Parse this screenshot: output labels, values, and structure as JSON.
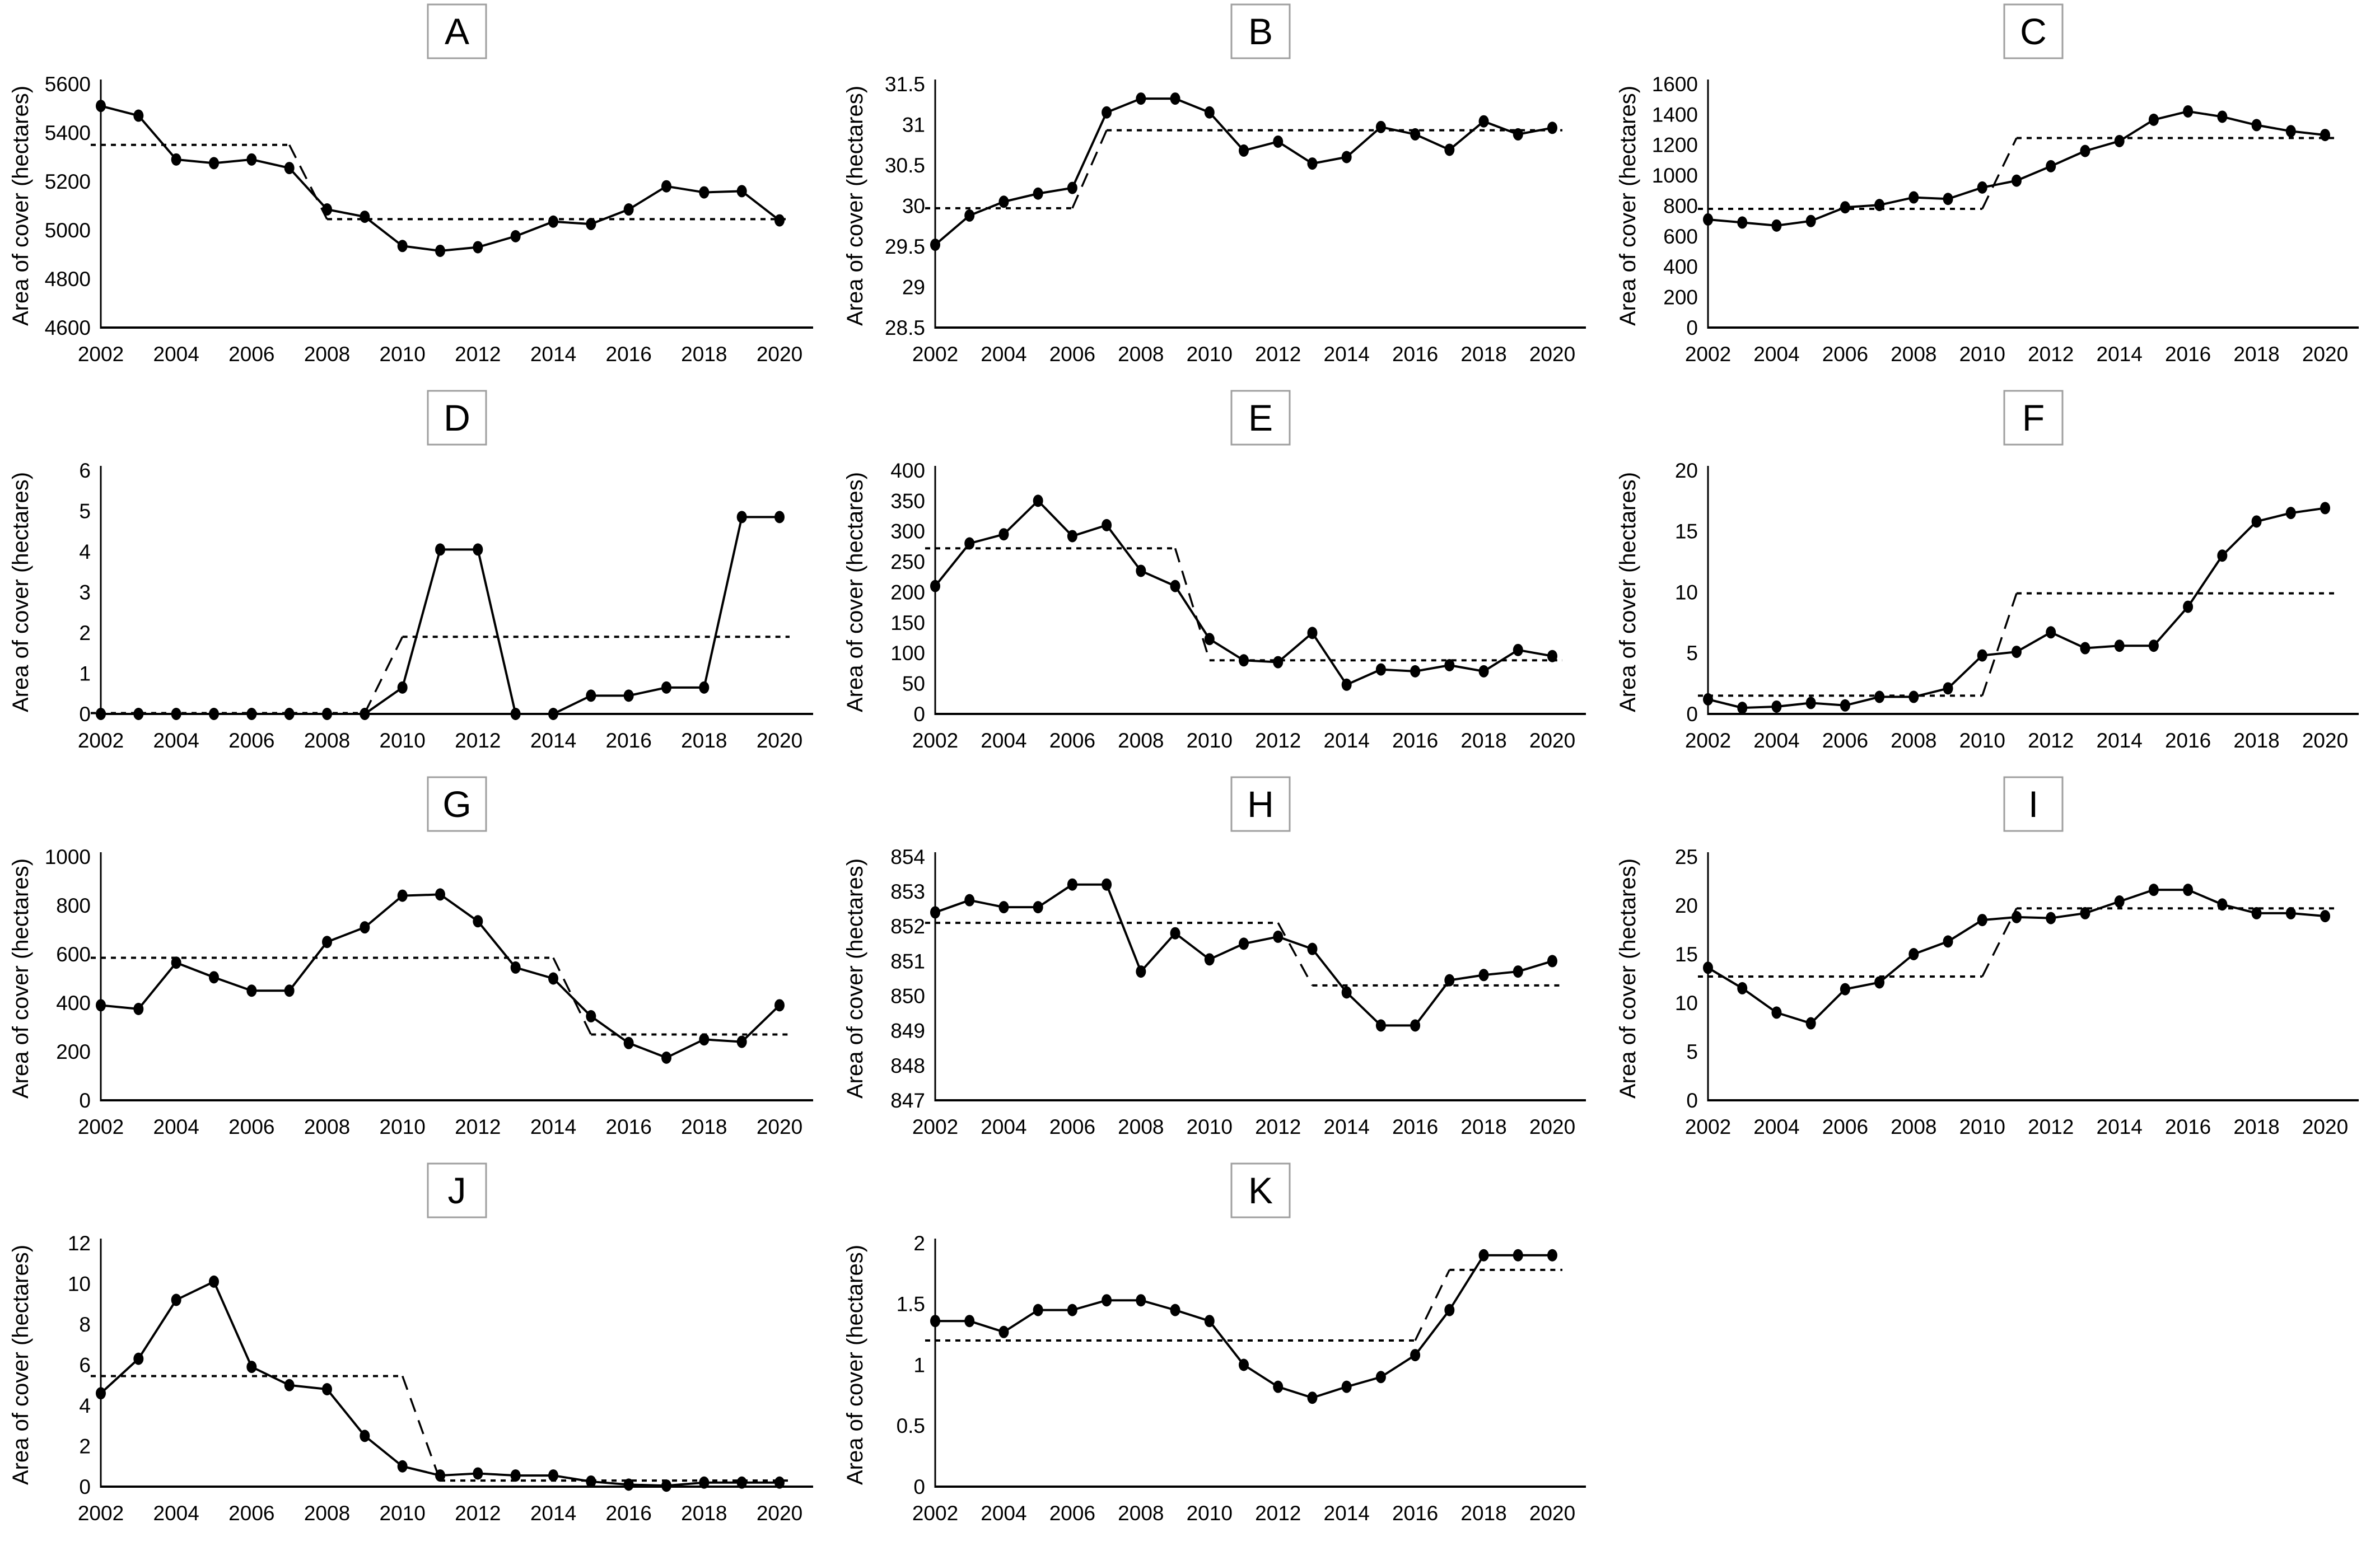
{
  "figure": {
    "ylabel": "Area of cover (hectares)",
    "years": [
      2002,
      2003,
      2004,
      2005,
      2006,
      2007,
      2008,
      2009,
      2010,
      2011,
      2012,
      2013,
      2014,
      2015,
      2016,
      2017,
      2018,
      2019,
      2020
    ],
    "x_tick_labels": [
      "2002",
      "2004",
      "2006",
      "2008",
      "2010",
      "2012",
      "2014",
      "2016",
      "2018",
      "2020"
    ],
    "series_styles": [
      {
        "name": "annual area of cover",
        "style": "solid line with filled circle markers",
        "color": "#000000"
      },
      {
        "name": "regime mean",
        "style": "dashed step line",
        "color": "#000000"
      }
    ],
    "grid_layout": "3 columns x 4 rows, last row has panels J and K only",
    "background_color": "#ffffff",
    "panel_box_border_color": "#9f9f9f"
  },
  "chart_data": [
    {
      "id": "A",
      "panel_label": "A",
      "type": "line",
      "ylabel": "Area of cover (hectares)",
      "ylim": [
        4600,
        5600
      ],
      "ytick_step": 200,
      "values": [
        5510,
        5470,
        5290,
        5275,
        5290,
        5255,
        5085,
        5055,
        4935,
        4915,
        4930,
        4975,
        5035,
        5025,
        5085,
        5180,
        5155,
        5160,
        5040
      ],
      "regime_means": [
        {
          "from": 2002,
          "to": 2007,
          "mean": 5350
        },
        {
          "from": 2008,
          "to": 2020,
          "mean": 5045
        }
      ]
    },
    {
      "id": "B",
      "panel_label": "B",
      "type": "line",
      "ylabel": "Area of cover (hectares)",
      "ylim": [
        28.5,
        31.5
      ],
      "ytick_step": 0.5,
      "values": [
        29.52,
        29.88,
        30.05,
        30.15,
        30.22,
        31.15,
        31.32,
        31.32,
        31.15,
        30.68,
        30.79,
        30.52,
        30.6,
        30.97,
        30.88,
        30.69,
        31.04,
        30.88,
        30.96
      ],
      "regime_means": [
        {
          "from": 2002,
          "to": 2006,
          "mean": 29.97
        },
        {
          "from": 2007,
          "to": 2020,
          "mean": 30.93
        }
      ]
    },
    {
      "id": "C",
      "panel_label": "C",
      "type": "line",
      "ylabel": "Area of cover (hectares)",
      "ylim": [
        0,
        1600
      ],
      "ytick_step": 200,
      "values": [
        710,
        690,
        670,
        700,
        790,
        805,
        855,
        845,
        920,
        965,
        1060,
        1160,
        1225,
        1365,
        1420,
        1385,
        1330,
        1290,
        1265
      ],
      "regime_means": [
        {
          "from": 2002,
          "to": 2010,
          "mean": 780
        },
        {
          "from": 2011,
          "to": 2020,
          "mean": 1245
        }
      ]
    },
    {
      "id": "D",
      "panel_label": "D",
      "type": "line",
      "ylabel": "Area of cover (hectares)",
      "ylim": [
        0,
        6
      ],
      "ytick_step": 1,
      "values": [
        0,
        0,
        0,
        0,
        0,
        0,
        0,
        0,
        0.65,
        4.05,
        4.05,
        0,
        0,
        0.45,
        0.45,
        0.65,
        0.65,
        4.85,
        4.85
      ],
      "regime_means": [
        {
          "from": 2002,
          "to": 2009,
          "mean": 0.02
        },
        {
          "from": 2010,
          "to": 2020,
          "mean": 1.9
        }
      ]
    },
    {
      "id": "E",
      "panel_label": "E",
      "type": "line",
      "ylabel": "Area of cover (hectares)",
      "ylim": [
        0,
        400
      ],
      "ytick_step": 50,
      "values": [
        210,
        280,
        295,
        350,
        292,
        310,
        235,
        210,
        123,
        88,
        85,
        133,
        48,
        73,
        70,
        80,
        70,
        105,
        95
      ],
      "regime_means": [
        {
          "from": 2002,
          "to": 2009,
          "mean": 272
        },
        {
          "from": 2010,
          "to": 2020,
          "mean": 88
        }
      ]
    },
    {
      "id": "F",
      "panel_label": "F",
      "type": "line",
      "ylabel": "Area of cover (hectares)",
      "ylim": [
        0,
        20
      ],
      "ytick_step": 5,
      "values": [
        1.2,
        0.5,
        0.6,
        0.9,
        0.7,
        1.4,
        1.4,
        2.1,
        4.8,
        5.1,
        6.7,
        5.4,
        5.6,
        5.6,
        8.8,
        13,
        15.8,
        16.5,
        16.9
      ],
      "regime_means": [
        {
          "from": 2002,
          "to": 2010,
          "mean": 1.5
        },
        {
          "from": 2011,
          "to": 2020,
          "mean": 9.9
        }
      ]
    },
    {
      "id": "G",
      "panel_label": "G",
      "type": "line",
      "ylabel": "Area of cover (hectares)",
      "ylim": [
        0,
        1000
      ],
      "ytick_step": 200,
      "values": [
        390,
        375,
        565,
        505,
        450,
        450,
        650,
        710,
        840,
        845,
        735,
        545,
        500,
        345,
        235,
        175,
        250,
        240,
        390
      ],
      "regime_means": [
        {
          "from": 2002,
          "to": 2014,
          "mean": 585
        },
        {
          "from": 2015,
          "to": 2020,
          "mean": 270
        }
      ]
    },
    {
      "id": "H",
      "panel_label": "H",
      "type": "line",
      "ylabel": "Area of cover (hectares)",
      "ylim": [
        847,
        854
      ],
      "ytick_step": 1,
      "values": [
        852.4,
        852.75,
        852.55,
        852.55,
        853.2,
        853.2,
        850.7,
        851.8,
        851.05,
        851.5,
        851.7,
        851.35,
        850.1,
        849.15,
        849.15,
        850.45,
        850.6,
        850.7,
        851.0
      ],
      "regime_means": [
        {
          "from": 2002,
          "to": 2012,
          "mean": 852.1
        },
        {
          "from": 2013,
          "to": 2020,
          "mean": 850.3
        }
      ]
    },
    {
      "id": "I",
      "panel_label": "I",
      "type": "line",
      "ylabel": "Area of cover (hectares)",
      "ylim": [
        0,
        25
      ],
      "ytick_step": 5,
      "values": [
        13.6,
        11.5,
        9,
        7.9,
        11.4,
        12.1,
        15,
        16.3,
        18.5,
        18.8,
        18.7,
        19.2,
        20.4,
        21.6,
        21.6,
        20.1,
        19.2,
        19.2,
        18.9
      ],
      "regime_means": [
        {
          "from": 2002,
          "to": 2010,
          "mean": 12.7
        },
        {
          "from": 2011,
          "to": 2020,
          "mean": 19.7
        }
      ]
    },
    {
      "id": "J",
      "panel_label": "J",
      "type": "line",
      "ylabel": "Area of cover (hectares)",
      "ylim": [
        0,
        12
      ],
      "ytick_step": 2,
      "values": [
        4.6,
        6.3,
        9.2,
        10.1,
        5.9,
        5,
        4.8,
        2.5,
        1,
        0.55,
        0.65,
        0.55,
        0.55,
        0.25,
        0.1,
        0.05,
        0.2,
        0.2,
        0.2
      ],
      "regime_means": [
        {
          "from": 2002,
          "to": 2010,
          "mean": 5.45
        },
        {
          "from": 2011,
          "to": 2020,
          "mean": 0.3
        }
      ]
    },
    {
      "id": "K",
      "panel_label": "K",
      "type": "line",
      "ylabel": "Area of cover (hectares)",
      "ylim": [
        0,
        2
      ],
      "ytick_step": 0.5,
      "values": [
        1.36,
        1.36,
        1.27,
        1.45,
        1.45,
        1.53,
        1.53,
        1.45,
        1.36,
        1,
        0.82,
        0.73,
        0.82,
        0.9,
        1.08,
        1.45,
        1.9,
        1.9,
        1.9
      ],
      "regime_means": [
        {
          "from": 2002,
          "to": 2016,
          "mean": 1.2
        },
        {
          "from": 2017,
          "to": 2020,
          "mean": 1.78
        }
      ]
    }
  ]
}
